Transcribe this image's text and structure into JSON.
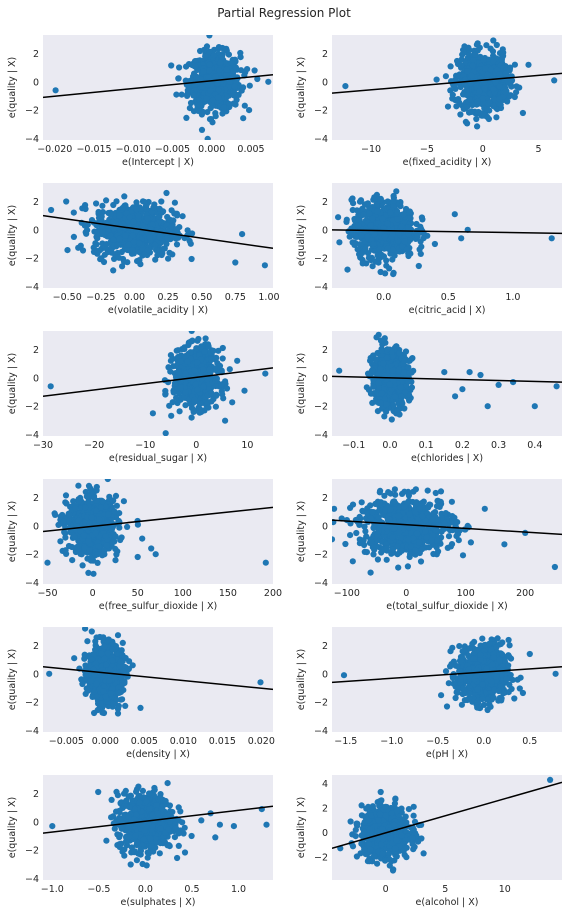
{
  "title": "Partial Regression Plot",
  "colors": {
    "panel_bg": "#eaeaf2",
    "point": "#1f77b4",
    "fit_line": "#000000",
    "text": "#262626"
  },
  "chart_data": [
    {
      "type": "scatter",
      "xlabel": "e(Intercept | X)",
      "ylabel": "e(quality | X)",
      "xlim": [
        -0.0215,
        0.0078
      ],
      "ylim": [
        -4.1,
        3.3
      ],
      "xticks": [
        -0.02,
        -0.015,
        -0.01,
        -0.005,
        0.0,
        0.005
      ],
      "xtick_labels": [
        "−0.020",
        "−0.015",
        "−0.010",
        "−0.005",
        "0.000",
        "0.005"
      ],
      "yticks": [
        -4,
        -2,
        0,
        2
      ],
      "ytick_labels": [
        "−4",
        "−2",
        "0",
        "2"
      ],
      "cloud": {
        "cx": 0.0004,
        "sx": 0.0016,
        "cy": 0.0,
        "sy": 1.0
      },
      "outliers": [
        [
          -0.0199,
          -0.6
        ],
        [
          0.0072,
          0.0
        ],
        [
          0.0058,
          0.2
        ],
        [
          0.0045,
          0.9
        ],
        [
          -0.0045,
          -0.9
        ]
      ],
      "fit": [
        [
          -0.0215,
          -1.1
        ],
        [
          0.0078,
          0.5
        ]
      ]
    },
    {
      "type": "scatter",
      "xlabel": "e(fixed_acidity | X)",
      "ylabel": "e(quality | X)",
      "xlim": [
        -13.5,
        7.1
      ],
      "ylim": [
        -4.1,
        3.3
      ],
      "xticks": [
        -10,
        -5,
        0,
        5
      ],
      "xtick_labels": [
        "−10",
        "−5",
        "0",
        "5"
      ],
      "yticks": [
        -4,
        -2,
        0,
        2
      ],
      "ytick_labels": [
        "−4",
        "−2",
        "0",
        "2"
      ],
      "cloud": {
        "cx": 0.0,
        "sx": 1.1,
        "cy": 0.0,
        "sy": 1.0
      },
      "outliers": [
        [
          -12.3,
          -0.3
        ],
        [
          6.4,
          0.1
        ],
        [
          4.1,
          1.2
        ],
        [
          3.6,
          -2.2
        ],
        [
          -2.0,
          -2.3
        ]
      ],
      "fit": [
        [
          -13.5,
          -0.8
        ],
        [
          7.1,
          0.6
        ]
      ]
    },
    {
      "type": "scatter",
      "xlabel": "e(volatile_acidity | X)",
      "ylabel": "e(quality | X)",
      "xlim": [
        -0.68,
        1.03
      ],
      "ylim": [
        -4.1,
        3.3
      ],
      "xticks": [
        -0.5,
        -0.25,
        0.0,
        0.25,
        0.5,
        0.75,
        1.0
      ],
      "xtick_labels": [
        "−0.50",
        "−0.25",
        "0.00",
        "0.25",
        "0.50",
        "0.75",
        "1.00"
      ],
      "yticks": [
        -4,
        -2,
        0,
        2
      ],
      "ytick_labels": [
        "−4",
        "−2",
        "0",
        "2"
      ],
      "cloud": {
        "cx": 0.0,
        "sx": 0.15,
        "cy": 0.0,
        "sy": 0.95
      },
      "outliers": [
        [
          -0.62,
          1.4
        ],
        [
          -0.45,
          -0.5
        ],
        [
          0.75,
          -2.3
        ],
        [
          0.97,
          -2.5
        ],
        [
          0.8,
          -0.3
        ]
      ],
      "fit": [
        [
          -0.68,
          1.0
        ],
        [
          1.03,
          -1.3
        ]
      ]
    },
    {
      "type": "scatter",
      "xlabel": "e(citric_acid | X)",
      "ylabel": "e(quality | X)",
      "xlim": [
        -0.4,
        1.38
      ],
      "ylim": [
        -4.1,
        3.3
      ],
      "xticks": [
        0.0,
        0.5,
        1.0
      ],
      "xtick_labels": [
        "0.0",
        "0.5",
        "1.0"
      ],
      "yticks": [
        -4,
        -2,
        0,
        2
      ],
      "ytick_labels": [
        "−4",
        "−2",
        "0",
        "2"
      ],
      "cloud": {
        "cx": 0.0,
        "sx": 0.12,
        "cy": 0.0,
        "sy": 1.0
      },
      "outliers": [
        [
          1.3,
          -0.6
        ],
        [
          0.6,
          -0.6
        ],
        [
          0.65,
          0.0
        ],
        [
          0.55,
          1.1
        ],
        [
          -0.28,
          -2.8
        ]
      ],
      "fit": [
        [
          -0.4,
          0.0
        ],
        [
          1.38,
          -0.25
        ]
      ]
    },
    {
      "type": "scatter",
      "xlabel": "e(residual_sugar | X)",
      "ylabel": "e(quality | X)",
      "xlim": [
        -30,
        15
      ],
      "ylim": [
        -4.1,
        3.3
      ],
      "xticks": [
        -30,
        -20,
        -10,
        0,
        10
      ],
      "xtick_labels": [
        "−30",
        "−20",
        "−10",
        "0",
        "10"
      ],
      "yticks": [
        -4,
        -2,
        0,
        2
      ],
      "ytick_labels": [
        "−4",
        "−2",
        "0",
        "2"
      ],
      "cloud": {
        "cx": 0.0,
        "sx": 2.2,
        "cy": 0.0,
        "sy": 1.0
      },
      "outliers": [
        [
          -28.5,
          -0.6
        ],
        [
          13.5,
          0.3
        ],
        [
          -8.5,
          -2.5
        ],
        [
          -6.0,
          -3.9
        ],
        [
          8.0,
          1.2
        ]
      ],
      "fit": [
        [
          -30,
          -1.3
        ],
        [
          15,
          0.7
        ]
      ]
    },
    {
      "type": "scatter",
      "xlabel": "e(chlorides | X)",
      "ylabel": "e(quality | X)",
      "xlim": [
        -0.16,
        0.475
      ],
      "ylim": [
        -4.1,
        3.3
      ],
      "xticks": [
        -0.1,
        0.0,
        0.1,
        0.2,
        0.3,
        0.4
      ],
      "xtick_labels": [
        "−0.1",
        "0.0",
        "0.1",
        "0.2",
        "0.3",
        "0.4"
      ],
      "yticks": [
        -4,
        -2,
        0,
        2
      ],
      "ytick_labels": [
        "−4",
        "−2",
        "0",
        "2"
      ],
      "cloud": {
        "cx": 0.0,
        "sx": 0.025,
        "cy": 0.0,
        "sy": 1.0
      },
      "outliers": [
        [
          0.46,
          -0.6
        ],
        [
          0.4,
          -2.0
        ],
        [
          0.34,
          -0.3
        ],
        [
          0.3,
          -0.5
        ],
        [
          0.27,
          -2.0
        ],
        [
          0.25,
          0.2
        ],
        [
          0.22,
          0.4
        ],
        [
          0.2,
          -0.8
        ],
        [
          -0.14,
          0.5
        ],
        [
          0.18,
          -1.3
        ],
        [
          0.15,
          0.4
        ]
      ],
      "fit": [
        [
          -0.16,
          0.1
        ],
        [
          0.475,
          -0.3
        ]
      ]
    },
    {
      "type": "scatter",
      "xlabel": "e(free_sulfur_dioxide | X)",
      "ylabel": "e(quality | X)",
      "xlim": [
        -55,
        200
      ],
      "ylim": [
        -4.1,
        3.3
      ],
      "xticks": [
        -50,
        0,
        50,
        100,
        150,
        200
      ],
      "xtick_labels": [
        "−50",
        "0",
        "50",
        "100",
        "150",
        "200"
      ],
      "yticks": [
        -4,
        -2,
        0,
        2
      ],
      "ytick_labels": [
        "−4",
        "−2",
        "0",
        "2"
      ],
      "cloud": {
        "cx": 0.0,
        "sx": 14,
        "cy": 0.0,
        "sy": 1.0
      },
      "outliers": [
        [
          192,
          -2.6
        ],
        [
          65,
          -1.6
        ],
        [
          55,
          -0.9
        ],
        [
          50,
          -2.2
        ],
        [
          70,
          -2.0
        ],
        [
          -50,
          -2.6
        ]
      ],
      "fit": [
        [
          -55,
          -0.4
        ],
        [
          200,
          1.3
        ]
      ]
    },
    {
      "type": "scatter",
      "xlabel": "e(total_sulfur_dioxide | X)",
      "ylabel": "e(quality | X)",
      "xlim": [
        -125,
        262
      ],
      "ylim": [
        -4.1,
        3.3
      ],
      "xticks": [
        -100,
        0,
        100,
        200
      ],
      "xtick_labels": [
        "−100",
        "0",
        "100",
        "200"
      ],
      "yticks": [
        -4,
        -2,
        0,
        2
      ],
      "ytick_labels": [
        "−4",
        "−2",
        "0",
        "2"
      ],
      "cloud": {
        "cx": 0.0,
        "sx": 40,
        "cy": 0.0,
        "sy": 1.0
      },
      "outliers": [
        [
          250,
          -2.9
        ],
        [
          200,
          -0.5
        ],
        [
          -100,
          0.4
        ],
        [
          -90,
          -2.5
        ],
        [
          165,
          -1.3
        ],
        [
          -60,
          -3.3
        ]
      ],
      "fit": [
        [
          -125,
          0.4
        ],
        [
          262,
          -0.6
        ]
      ]
    },
    {
      "type": "scatter",
      "xlabel": "e(density | X)",
      "ylabel": "e(quality | X)",
      "xlim": [
        -0.008,
        0.0215
      ],
      "ylim": [
        -4.1,
        3.3
      ],
      "xticks": [
        -0.005,
        0.0,
        0.005,
        0.01,
        0.015,
        0.02
      ],
      "xtick_labels": [
        "−0.005",
        "0.000",
        "0.005",
        "0.010",
        "0.015",
        "0.020"
      ],
      "yticks": [
        -4,
        -2,
        0,
        2
      ],
      "ytick_labels": [
        "−4",
        "−2",
        "0",
        "2"
      ],
      "cloud": {
        "cx": 0.0,
        "sx": 0.0011,
        "cy": 0.0,
        "sy": 1.0
      },
      "outliers": [
        [
          0.0199,
          -0.6
        ],
        [
          -0.0072,
          0.0
        ],
        [
          0.0045,
          -2.4
        ],
        [
          -0.004,
          1.1
        ],
        [
          0.0035,
          0.6
        ]
      ],
      "fit": [
        [
          -0.008,
          0.5
        ],
        [
          0.0215,
          -1.1
        ]
      ]
    },
    {
      "type": "scatter",
      "xlabel": "e(pH | X)",
      "ylabel": "e(quality | X)",
      "xlim": [
        -1.65,
        0.85
      ],
      "ylim": [
        -4.1,
        3.3
      ],
      "xticks": [
        -1.5,
        -1.0,
        -0.5,
        0.0,
        0.5
      ],
      "xtick_labels": [
        "−1.5",
        "−1.0",
        "−0.5",
        "0.0",
        "0.5"
      ],
      "yticks": [
        -4,
        -2,
        0,
        2
      ],
      "ytick_labels": [
        "−4",
        "−2",
        "0",
        "2"
      ],
      "cloud": {
        "cx": 0.0,
        "sx": 0.14,
        "cy": 0.0,
        "sy": 1.0
      },
      "outliers": [
        [
          -1.52,
          -0.1
        ],
        [
          0.78,
          0.0
        ],
        [
          -0.4,
          -2.3
        ],
        [
          0.5,
          1.4
        ],
        [
          0.15,
          2.5
        ]
      ],
      "fit": [
        [
          -1.65,
          -0.6
        ],
        [
          0.85,
          0.5
        ]
      ]
    },
    {
      "type": "scatter",
      "xlabel": "e(sulphates | X)",
      "ylabel": "e(quality | X)",
      "xlim": [
        -1.1,
        1.37
      ],
      "ylim": [
        -4.1,
        3.3
      ],
      "xticks": [
        -1.0,
        -0.5,
        0.0,
        0.5,
        1.0
      ],
      "xtick_labels": [
        "−1.0",
        "−0.5",
        "0.0",
        "0.5",
        "1.0"
      ],
      "yticks": [
        -4,
        -2,
        0,
        2
      ],
      "ytick_labels": [
        "−4",
        "−2",
        "0",
        "2"
      ],
      "cloud": {
        "cx": 0.0,
        "sx": 0.15,
        "cy": 0.0,
        "sy": 1.0
      },
      "outliers": [
        [
          -1.0,
          -0.3
        ],
        [
          1.3,
          -0.2
        ],
        [
          1.25,
          0.9
        ],
        [
          0.95,
          -0.3
        ],
        [
          0.75,
          -1.1
        ],
        [
          0.8,
          -0.2
        ],
        [
          0.6,
          0.1
        ],
        [
          0.7,
          0.6
        ]
      ],
      "fit": [
        [
          -1.1,
          -0.8
        ],
        [
          1.37,
          1.1
        ]
      ]
    },
    {
      "type": "scatter",
      "xlabel": "e(alcohol | X)",
      "ylabel": "e(quality | X)",
      "xlim": [
        -4.5,
        14.8
      ],
      "ylim": [
        -3.9,
        4.7
      ],
      "xticks": [
        0,
        5,
        10
      ],
      "xtick_labels": [
        "0",
        "5",
        "10"
      ],
      "yticks": [
        -2,
        0,
        2,
        4
      ],
      "ytick_labels": [
        "−2",
        "0",
        "2",
        "4"
      ],
      "cloud": {
        "cx": 0.0,
        "sx": 1.0,
        "cy": 0.0,
        "sy": 1.0
      },
      "outliers": [
        [
          13.8,
          4.3
        ],
        [
          -3.8,
          -1.3
        ],
        [
          3.0,
          -0.5
        ],
        [
          2.8,
          0.6
        ],
        [
          -2.5,
          0.2
        ]
      ],
      "fit": [
        [
          -4.5,
          -1.3
        ],
        [
          14.8,
          4.1
        ]
      ]
    }
  ]
}
